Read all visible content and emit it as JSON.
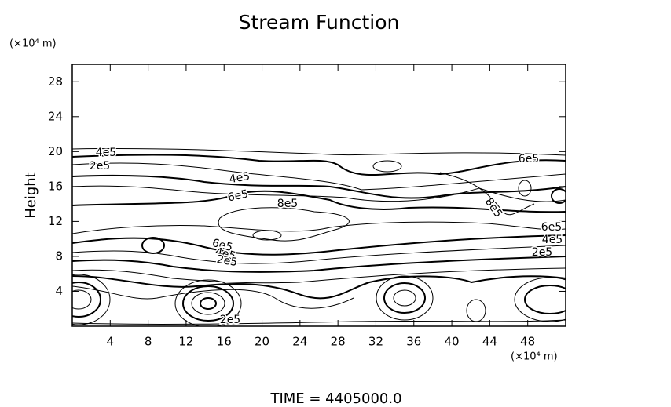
{
  "chart_data": {
    "type": "contour",
    "title": "Stream Function",
    "y_label": "Height",
    "x_unit_label": "(×10⁴ m)",
    "y_unit_label": "(×10⁴ m)",
    "xlim": [
      0,
      52
    ],
    "xticks": [
      4,
      8,
      12,
      16,
      20,
      24,
      28,
      32,
      36,
      40,
      44,
      48
    ],
    "ylim": [
      0,
      30
    ],
    "yticks": [
      4,
      8,
      12,
      16,
      20,
      24,
      28
    ],
    "contour_labels": [
      "4e5",
      "2e5",
      "4e5",
      "6e5",
      "8e5",
      "6e5",
      "8e5",
      "6e5",
      "4e5",
      "2e5",
      "6e5",
      "4e5",
      "2e5",
      "2e5"
    ],
    "color": "#000000",
    "footer": "TIME  =  4405000.0"
  }
}
